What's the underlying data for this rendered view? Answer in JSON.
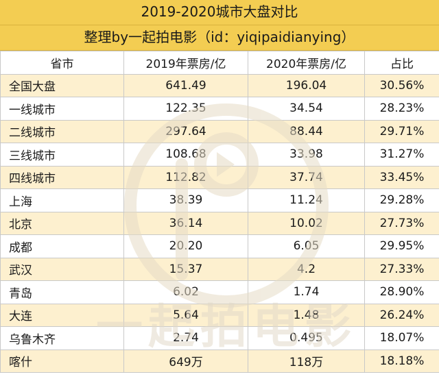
{
  "title": "2019-2020城市大盘对比",
  "subtitle": "整理by一起拍电影（id：yiqipaidianying）",
  "columns": [
    "省市",
    "2019年票房/亿",
    "2020年票房/亿",
    "占比"
  ],
  "rows": [
    [
      "全国大盘",
      "641.49",
      "196.04",
      "30.56%"
    ],
    [
      "一线城市",
      "122.35",
      "34.54",
      "28.23%"
    ],
    [
      "二线城市",
      "297.64",
      "88.44",
      "29.71%"
    ],
    [
      "三线城市",
      "108.68",
      "33.98",
      "31.27%"
    ],
    [
      "四线城市",
      "112.82",
      "37.74",
      "33.45%"
    ],
    [
      "上海",
      "38.39",
      "11.24",
      "29.28%"
    ],
    [
      "北京",
      "36.14",
      "10.02",
      "27.73%"
    ],
    [
      "成都",
      "20.20",
      "6.05",
      "29.95%"
    ],
    [
      "武汉",
      "15.37",
      "4.2",
      "27.33%"
    ],
    [
      "青岛",
      "6.02",
      "1.74",
      "28.90%"
    ],
    [
      "大连",
      "5.64",
      "1.48",
      "26.24%"
    ],
    [
      "乌鲁木齐",
      "2.74",
      "0.495",
      "18.07%"
    ],
    [
      "喀什",
      "649万",
      "118万",
      "18.18%"
    ]
  ],
  "watermark_text": "一起拍电影",
  "colors": {
    "header": "#f3cd52",
    "stripe": "#fdf0cf",
    "watermark": "#e9e2d2"
  }
}
